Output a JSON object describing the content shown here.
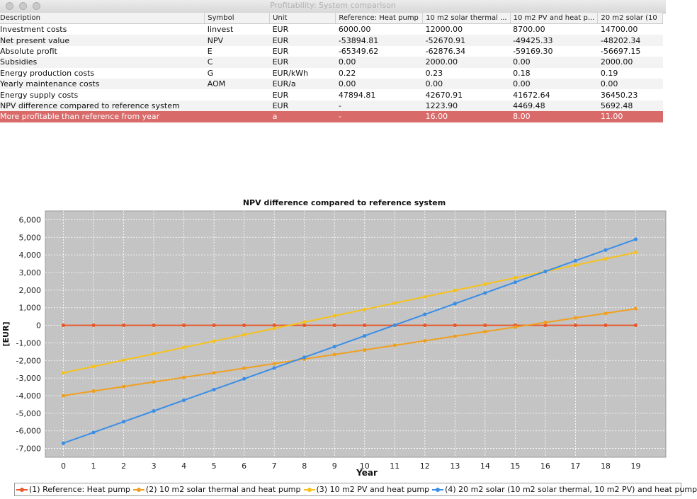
{
  "window": {
    "title": "Profitability: System comparison"
  },
  "table": {
    "columns": [
      "Description",
      "Symbol",
      "Unit",
      "Reference: Heat pump",
      "10 m2 solar thermal ...",
      "10 m2 PV and heat p...",
      "20 m2 solar (10"
    ],
    "rows": [
      {
        "description": "Investment costs",
        "symbol": "Iinvest",
        "unit": "EUR",
        "ref": "6000.00",
        "c1": "12000.00",
        "c2": "8700.00",
        "c3": "14700.00"
      },
      {
        "description": "Net present value",
        "symbol": "NPV",
        "unit": "EUR",
        "ref": "-53894.81",
        "c1": "-52670.91",
        "c2": "-49425.33",
        "c3": "-48202.34"
      },
      {
        "description": "Absolute profit",
        "symbol": "E",
        "unit": "EUR",
        "ref": "-65349.62",
        "c1": "-62876.34",
        "c2": "-59169.30",
        "c3": "-56697.15"
      },
      {
        "description": "Subsidies",
        "symbol": "C",
        "unit": "EUR",
        "ref": "0.00",
        "c1": "2000.00",
        "c2": "0.00",
        "c3": "2000.00"
      },
      {
        "description": "Energy production costs",
        "symbol": "G",
        "unit": "EUR/kWh",
        "ref": "0.22",
        "c1": "0.23",
        "c2": "0.18",
        "c3": "0.19"
      },
      {
        "description": "Yearly maintenance costs",
        "symbol": "AOM",
        "unit": "EUR/a",
        "ref": "0.00",
        "c1": "0.00",
        "c2": "0.00",
        "c3": "0.00"
      },
      {
        "description": "Energy supply costs",
        "symbol": "",
        "unit": "EUR",
        "ref": "47894.81",
        "c1": "42670.91",
        "c2": "41672.64",
        "c3": "36450.23"
      },
      {
        "description": "NPV difference compared to reference system",
        "symbol": "",
        "unit": "EUR",
        "ref": "-",
        "c1": "1223.90",
        "c2": "4469.48",
        "c3": "5692.48"
      },
      {
        "description": "More profitable than reference from year",
        "symbol": "",
        "unit": "a",
        "ref": "-",
        "c1": "16.00",
        "c2": "8.00",
        "c3": "11.00",
        "highlight": true
      }
    ]
  },
  "chart_data": {
    "type": "line",
    "title": "NPV difference compared to reference system",
    "xlabel": "Year",
    "ylabel": "[EUR]",
    "x": [
      0,
      1,
      2,
      3,
      4,
      5,
      6,
      7,
      8,
      9,
      10,
      11,
      12,
      13,
      14,
      15,
      16,
      17,
      18,
      19
    ],
    "xlim": [
      -0.6,
      20.0
    ],
    "ylim": [
      -7500,
      6500
    ],
    "yticks": [
      -7000,
      -6000,
      -5000,
      -4000,
      -3000,
      -2000,
      -1000,
      0,
      1000,
      2000,
      3000,
      4000,
      5000,
      6000
    ],
    "ytick_labels": [
      "-7,000",
      "-6,000",
      "-5,000",
      "-4,000",
      "-3,000",
      "-2,000",
      "-1,000",
      "0",
      "1,000",
      "2,000",
      "3,000",
      "4,000",
      "5,000",
      "6,000"
    ],
    "grid": true,
    "legend": "bottom",
    "series": [
      {
        "name": "(1) Reference: Heat pump",
        "color": "#e8582a",
        "values": [
          0,
          0,
          0,
          0,
          0,
          0,
          0,
          0,
          0,
          0,
          0,
          0,
          0,
          0,
          0,
          0,
          0,
          0,
          0,
          0
        ]
      },
      {
        "name": "(2) 10 m2 solar thermal and heat pump",
        "color": "#f0a020",
        "values": [
          -4000,
          -3740,
          -3480,
          -3220,
          -2960,
          -2700,
          -2440,
          -2180,
          -1920,
          -1660,
          -1400,
          -1140,
          -880,
          -620,
          -360,
          -100,
          160,
          420,
          680,
          940
        ]
      },
      {
        "name": "(3) 10 m2 PV and heat pump",
        "color": "#f6c21c",
        "values": [
          -2700,
          -2340,
          -1980,
          -1620,
          -1260,
          -900,
          -540,
          -180,
          180,
          540,
          900,
          1260,
          1620,
          1980,
          2340,
          2700,
          3060,
          3420,
          3780,
          4140
        ]
      },
      {
        "name": "(4) 20 m2 solar (10 m2 solar thermal, 10 m2 PV) and heat pump",
        "color": "#3a8ee6",
        "values": [
          -6700,
          -6090,
          -5480,
          -4870,
          -4260,
          -3650,
          -3040,
          -2430,
          -1820,
          -1210,
          -600,
          10,
          620,
          1230,
          1840,
          2450,
          3060,
          3670,
          4280,
          4890
        ]
      }
    ]
  }
}
